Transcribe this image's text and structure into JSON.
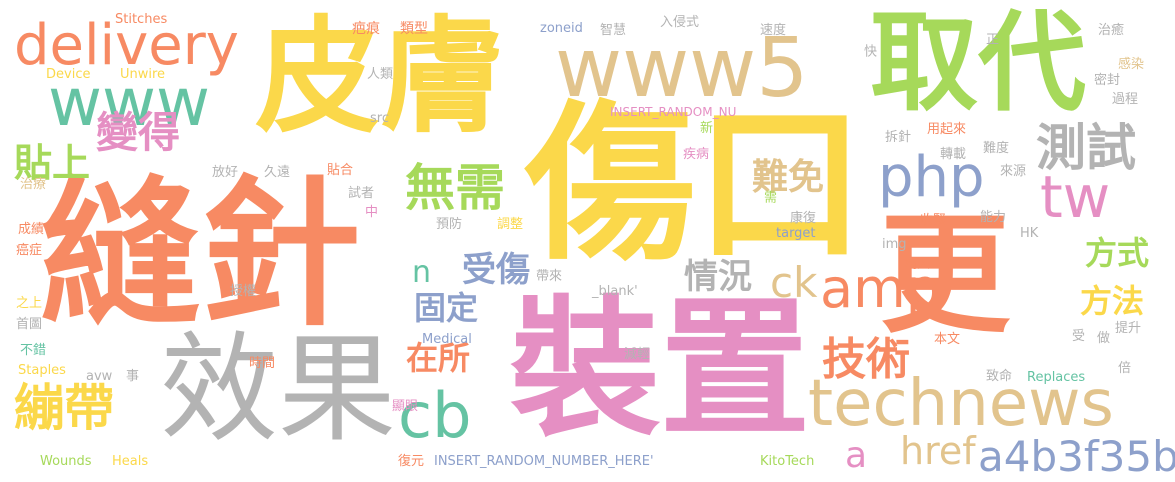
{
  "palette": {
    "pink": "#e58fc3",
    "yellow": "#fbd84a",
    "orange": "#f78a63",
    "green": "#a6d95a",
    "teal": "#65c3a3",
    "blue": "#8da0cb",
    "tan": "#e2c48d",
    "gray": "#b3b3b3"
  },
  "words": [
    {
      "text": "傷口",
      "color": "#fbd84a"
    },
    {
      "text": "縫針",
      "color": "#f78a63"
    },
    {
      "text": "裝置",
      "color": "#e58fc3"
    },
    {
      "text": "皮膚",
      "color": "#fbd84a"
    },
    {
      "text": "更",
      "color": "#f78a63"
    },
    {
      "text": "www5",
      "color": "#e2c48d"
    },
    {
      "text": "取代",
      "color": "#a6d95a"
    },
    {
      "text": "效果",
      "color": "#b3b3b3"
    },
    {
      "text": "technews",
      "color": "#e2c48d"
    },
    {
      "text": "www",
      "color": "#65c3a3"
    },
    {
      "text": "delivery",
      "color": "#f78a63"
    },
    {
      "text": "php",
      "color": "#8da0cb"
    },
    {
      "text": "測試",
      "color": "#b3b3b3"
    },
    {
      "text": "tw",
      "color": "#e58fc3"
    },
    {
      "text": "amp",
      "color": "#f78a63"
    },
    {
      "text": "cb",
      "color": "#65c3a3"
    },
    {
      "text": "繃帶",
      "color": "#fbd84a"
    },
    {
      "text": "無需",
      "color": "#a6d95a"
    },
    {
      "text": "變得",
      "color": "#e58fc3"
    },
    {
      "text": "貼上",
      "color": "#a6d95a"
    },
    {
      "text": "技術",
      "color": "#f78a63"
    },
    {
      "text": "a4b3f35b",
      "color": "#8da0cb"
    },
    {
      "text": "href",
      "color": "#e2c48d"
    },
    {
      "text": "難免",
      "color": "#e2c48d"
    },
    {
      "text": "受傷",
      "color": "#8da0cb"
    },
    {
      "text": "情況",
      "color": "#b3b3b3"
    },
    {
      "text": "ck",
      "color": "#e2c48d"
    },
    {
      "text": "固定",
      "color": "#8da0cb"
    },
    {
      "text": "在所",
      "color": "#f78a63"
    },
    {
      "text": "方式",
      "color": "#a6d95a"
    },
    {
      "text": "方法",
      "color": "#fbd84a"
    },
    {
      "text": "n",
      "color": "#65c3a3"
    },
    {
      "text": "a",
      "color": "#e58fc3"
    },
    {
      "text": "Stitches",
      "color": "#f78a63"
    },
    {
      "text": "Device",
      "color": "#fbd84a"
    },
    {
      "text": "Unwire",
      "color": "#fbd84a"
    },
    {
      "text": "疤痕",
      "color": "#f78a63"
    },
    {
      "text": "類型",
      "color": "#f78a63"
    },
    {
      "text": "zoneid",
      "color": "#8da0cb"
    },
    {
      "text": "智慧",
      "color": "#b3b3b3"
    },
    {
      "text": "入侵式",
      "color": "#b3b3b3"
    },
    {
      "text": "速度",
      "color": "#b3b3b3"
    },
    {
      "text": "快",
      "color": "#b3b3b3"
    },
    {
      "text": "正",
      "color": "#b3b3b3"
    },
    {
      "text": "治癒",
      "color": "#b3b3b3"
    },
    {
      "text": "人類",
      "color": "#b3b3b3"
    },
    {
      "text": "感染",
      "color": "#e2c48d"
    },
    {
      "text": "密封",
      "color": "#b3b3b3"
    },
    {
      "text": "過程",
      "color": "#b3b3b3"
    },
    {
      "text": "INSERT_RANDOM_NU",
      "color": "#e58fc3"
    },
    {
      "text": "src",
      "color": "#b3b3b3"
    },
    {
      "text": "新",
      "color": "#a6d95a"
    },
    {
      "text": "拆針",
      "color": "#b3b3b3"
    },
    {
      "text": "用起來",
      "color": "#f78a63"
    },
    {
      "text": "轉載",
      "color": "#b3b3b3"
    },
    {
      "text": "難度",
      "color": "#b3b3b3"
    },
    {
      "text": "疾病",
      "color": "#e58fc3"
    },
    {
      "text": "放好",
      "color": "#b3b3b3"
    },
    {
      "text": "久遠",
      "color": "#b3b3b3"
    },
    {
      "text": "貼合",
      "color": "#f78a63"
    },
    {
      "text": "來源",
      "color": "#b3b3b3"
    },
    {
      "text": "治療",
      "color": "#e2c48d"
    },
    {
      "text": "試者",
      "color": "#b3b3b3"
    },
    {
      "text": "中",
      "color": "#e58fc3"
    },
    {
      "text": "需",
      "color": "#a6d95a"
    },
    {
      "text": "收緊",
      "color": "#f78a63"
    },
    {
      "text": "能力",
      "color": "#b3b3b3"
    },
    {
      "text": "成績",
      "color": "#f78a63"
    },
    {
      "text": "預防",
      "color": "#b3b3b3"
    },
    {
      "text": "調整",
      "color": "#fbd84a"
    },
    {
      "text": "康復",
      "color": "#b3b3b3"
    },
    {
      "text": "target",
      "color": "#8da0cb"
    },
    {
      "text": "HK",
      "color": "#b3b3b3"
    },
    {
      "text": "癌症",
      "color": "#f78a63"
    },
    {
      "text": "img",
      "color": "#b3b3b3"
    },
    {
      "text": "病人",
      "color": "#f78a63"
    },
    {
      "text": "授權",
      "color": "#b3b3b3"
    },
    {
      "text": "帶來",
      "color": "#b3b3b3"
    },
    {
      "text": "_blank'",
      "color": "#b3b3b3"
    },
    {
      "text": "之上",
      "color": "#fbd84a"
    },
    {
      "text": "首圖",
      "color": "#b3b3b3"
    },
    {
      "text": "受",
      "color": "#b3b3b3"
    },
    {
      "text": "做",
      "color": "#b3b3b3"
    },
    {
      "text": "提升",
      "color": "#b3b3b3"
    },
    {
      "text": "Medical",
      "color": "#8da0cb"
    },
    {
      "text": "本文",
      "color": "#f78a63"
    },
    {
      "text": "不錯",
      "color": "#65c3a3"
    },
    {
      "text": "減輕",
      "color": "#b3b3b3"
    },
    {
      "text": "時間",
      "color": "#f78a63"
    },
    {
      "text": "Staples",
      "color": "#fbd84a"
    },
    {
      "text": "avw",
      "color": "#b3b3b3"
    },
    {
      "text": "事",
      "color": "#b3b3b3"
    },
    {
      "text": "致命",
      "color": "#b3b3b3"
    },
    {
      "text": "Replaces",
      "color": "#65c3a3"
    },
    {
      "text": "倍",
      "color": "#b3b3b3"
    },
    {
      "text": "顯眼",
      "color": "#e58fc3"
    },
    {
      "text": "Wounds",
      "color": "#a6d95a"
    },
    {
      "text": "Heals",
      "color": "#fbd84a"
    },
    {
      "text": "復元",
      "color": "#f78a63"
    },
    {
      "text": "INSERT_RANDOM_NUMBER_HERE'",
      "color": "#8da0cb"
    },
    {
      "text": "KitoTech",
      "color": "#a6d95a"
    }
  ]
}
